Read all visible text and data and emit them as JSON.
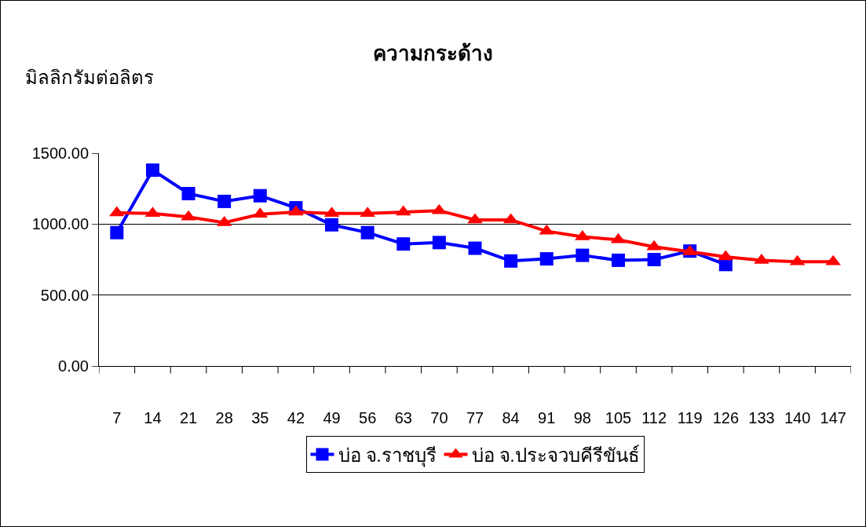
{
  "chart_data": {
    "type": "line",
    "title": "ความกระด้าง",
    "ylabel": "มิลลิกรัมต่อลิตร",
    "categories": [
      "7",
      "14",
      "21",
      "28",
      "35",
      "42",
      "49",
      "56",
      "63",
      "70",
      "77",
      "84",
      "91",
      "98",
      "105",
      "112",
      "119",
      "126",
      "133",
      "140",
      "147"
    ],
    "series": [
      {
        "name": "บ่อ จ.ราชบุรี",
        "color": "#0000ff",
        "marker": "square",
        "values": [
          940,
          1380,
          1215,
          1160,
          1200,
          1115,
          995,
          940,
          860,
          870,
          830,
          740,
          755,
          780,
          745,
          750,
          810,
          715,
          null,
          null,
          null
        ]
      },
      {
        "name": "บ่อ จ.ประจวบคีรีขันธ์",
        "color": "#ff0000",
        "marker": "triangle",
        "values": [
          1080,
          1075,
          1050,
          1010,
          1070,
          1085,
          1075,
          1075,
          1085,
          1095,
          1030,
          1030,
          950,
          910,
          890,
          840,
          805,
          770,
          745,
          735,
          735
        ]
      }
    ],
    "ylim": [
      0,
      1500
    ],
    "yticks": [
      {
        "value": 0,
        "label": "0.00"
      },
      {
        "value": 500,
        "label": "500.00"
      },
      {
        "value": 1000,
        "label": "1000.00"
      },
      {
        "value": 1500,
        "label": "1500.00"
      }
    ],
    "grid": "y",
    "legend": "bottom",
    "line_style": "solid"
  }
}
